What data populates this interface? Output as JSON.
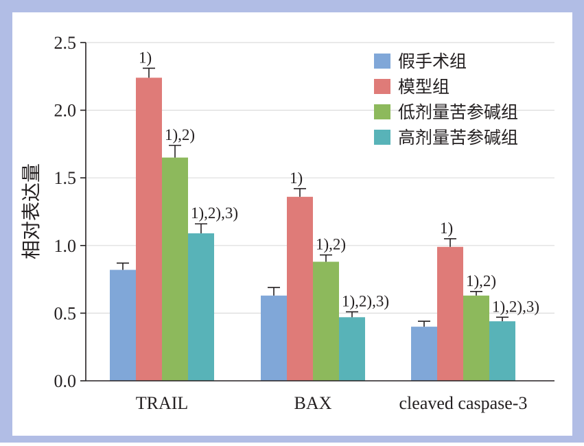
{
  "chart_data": {
    "type": "bar",
    "title": "",
    "xlabel": "",
    "ylabel": "相对表达量",
    "ylim": [
      0,
      2.5
    ],
    "yticks": [
      "0.0",
      "0.5",
      "1.0",
      "1.5",
      "2.0",
      "2.5"
    ],
    "categories": [
      "TRAIL",
      "BAX",
      "cleaved caspase-3"
    ],
    "series": [
      {
        "name": "假手术组",
        "color": "#80a7d8",
        "values": [
          0.82,
          0.63,
          0.4
        ],
        "errors": [
          0.05,
          0.06,
          0.04
        ]
      },
      {
        "name": "模型组",
        "color": "#df7b78",
        "values": [
          2.24,
          1.36,
          0.99
        ],
        "errors": [
          0.07,
          0.06,
          0.06
        ]
      },
      {
        "name": "低剂量苦参碱组",
        "color": "#8db95c",
        "values": [
          1.65,
          0.88,
          0.63
        ],
        "errors": [
          0.09,
          0.05,
          0.03
        ]
      },
      {
        "name": "高剂量苦参碱组",
        "color": "#58b3b8",
        "values": [
          1.09,
          0.47,
          0.44
        ],
        "errors": [
          0.07,
          0.04,
          0.03
        ]
      }
    ],
    "annotations": [
      [
        "",
        "1)",
        "1),2)",
        "1),2),3)"
      ],
      [
        "",
        "1)",
        "1),2)",
        "1),2),3)"
      ],
      [
        "",
        "1)",
        "1),2)",
        "1),2),3)"
      ]
    ],
    "grid": true,
    "legend_position": "top-right",
    "colors": {
      "frame_background": "#b1bde5",
      "plot_background": "#ffffff",
      "gridline": "#dcdcdc",
      "axis": "#231f20"
    }
  }
}
